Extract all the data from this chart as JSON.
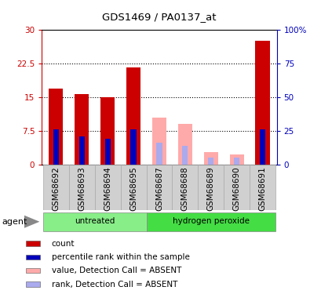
{
  "title": "GDS1469 / PA0137_at",
  "samples": [
    "GSM68692",
    "GSM68693",
    "GSM68694",
    "GSM68695",
    "GSM68687",
    "GSM68688",
    "GSM68689",
    "GSM68690",
    "GSM68691"
  ],
  "groups": [
    "untreated",
    "untreated",
    "untreated",
    "untreated",
    "hydrogen peroxide",
    "hydrogen peroxide",
    "hydrogen peroxide",
    "hydrogen peroxide",
    "hydrogen peroxide"
  ],
  "count_values": [
    16.8,
    15.7,
    15.0,
    21.5,
    null,
    null,
    null,
    null,
    27.5
  ],
  "rank_values_left": [
    7.8,
    6.3,
    5.8,
    7.8,
    null,
    null,
    null,
    null,
    7.8
  ],
  "rank_values_right": [
    26.0,
    21.0,
    19.3,
    26.0,
    null,
    null,
    null,
    null,
    26.0
  ],
  "absent_value_values": [
    null,
    null,
    null,
    null,
    10.5,
    9.0,
    2.8,
    2.2,
    null
  ],
  "absent_rank_values_left": [
    null,
    null,
    null,
    null,
    4.8,
    4.2,
    1.5,
    1.5,
    null
  ],
  "absent_rank_values_right": [
    null,
    null,
    null,
    null,
    16.0,
    14.0,
    5.0,
    5.0,
    null
  ],
  "left_ylim": [
    0,
    30
  ],
  "right_ylim": [
    0,
    100
  ],
  "left_yticks": [
    0,
    7.5,
    15,
    22.5,
    30
  ],
  "left_yticklabels": [
    "0",
    "7.5",
    "15",
    "22.5",
    "30"
  ],
  "right_yticks": [
    0,
    25,
    50,
    75,
    100
  ],
  "right_yticklabels": [
    "0",
    "25",
    "50",
    "75",
    "100%"
  ],
  "right_top_label": "100%",
  "hlines": [
    7.5,
    15.0,
    22.5
  ],
  "color_count": "#cc0000",
  "color_rank": "#0000bb",
  "color_absent_value": "#ffaaaa",
  "color_absent_rank": "#aaaaee",
  "bar_width": 0.55,
  "rank_bar_width": 0.22,
  "untreated_label": "untreated",
  "hydrogen_label": "hydrogen peroxide",
  "agent_label": "agent",
  "group_color_untreated": "#88ee88",
  "group_color_peroxide": "#44dd44",
  "legend_items": [
    {
      "label": "count",
      "color": "#cc0000"
    },
    {
      "label": "percentile rank within the sample",
      "color": "#0000bb"
    },
    {
      "label": "value, Detection Call = ABSENT",
      "color": "#ffaaaa"
    },
    {
      "label": "rank, Detection Call = ABSENT",
      "color": "#aaaaee"
    }
  ],
  "bg_color": "#ffffff",
  "tick_color_left": "#cc0000",
  "tick_color_right": "#0000bb",
  "label_area_bg": "#cccccc",
  "font_size_ticks": 7.5,
  "font_size_title": 9.5,
  "font_size_labels": 7.5,
  "font_size_legend": 7.5
}
